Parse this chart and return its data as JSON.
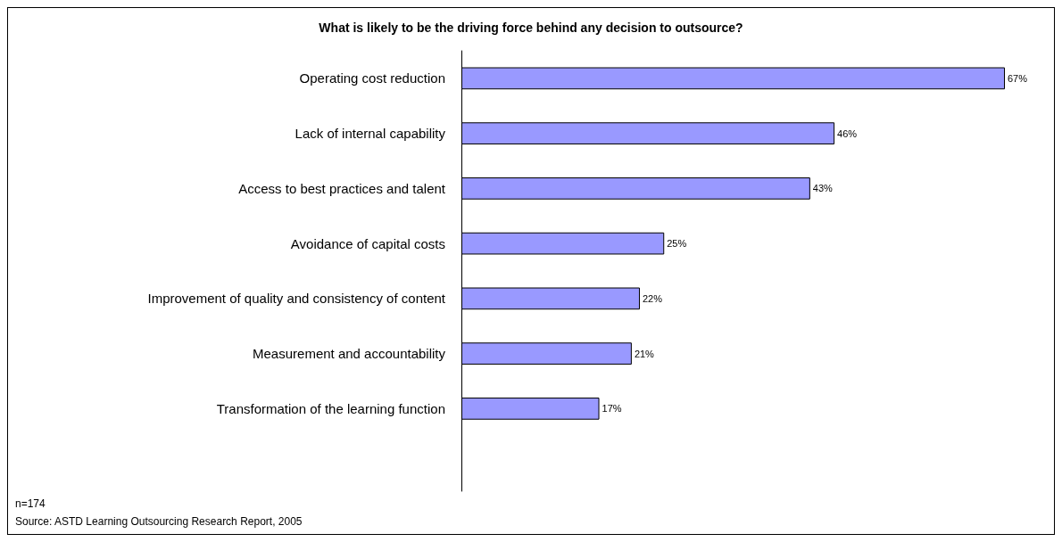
{
  "chart_data": {
    "type": "bar",
    "orientation": "horizontal",
    "title": "What is likely to be the driving force behind any decision to outsource?",
    "categories": [
      "Operating cost reduction",
      "Lack of internal capability",
      "Access to best practices and talent",
      "Avoidance of capital costs",
      "Improvement of quality and consistency of content",
      "Measurement and accountability",
      "Transformation of the learning function",
      null
    ],
    "values": [
      67,
      46,
      43,
      25,
      22,
      21,
      17,
      null
    ],
    "value_labels": [
      "67%",
      "46%",
      "43%",
      "25%",
      "22%",
      "21%",
      "17%",
      null
    ],
    "color": "#9999ff",
    "annotations": [
      "n=174",
      "Source: ASTD Learning Outsourcing Research Report, 2005"
    ]
  }
}
